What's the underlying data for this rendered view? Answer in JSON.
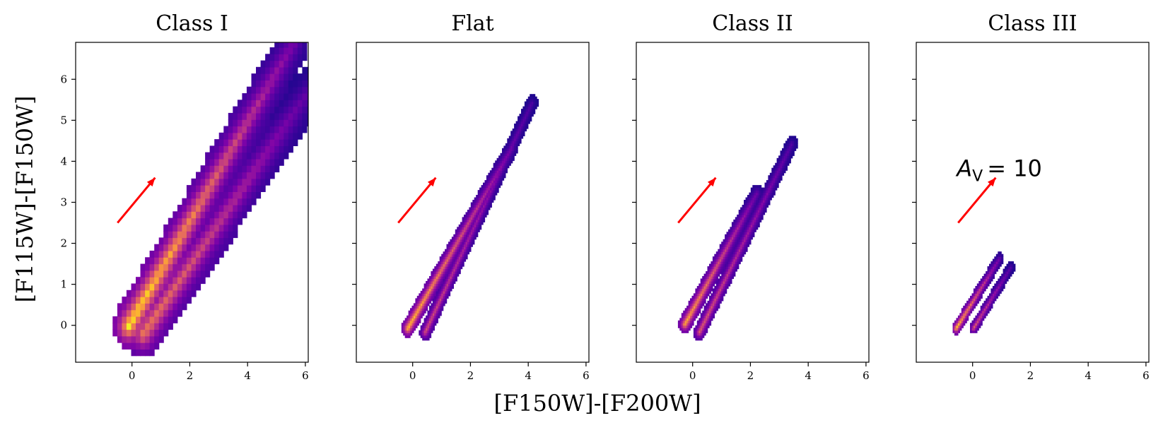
{
  "figure": {
    "xlabel": "[F150W]-[F200W]",
    "ylabel": "[F115W]-[F150W]"
  },
  "colors": {
    "arrow": "#ff0000",
    "colormap": [
      "#0d0887",
      "#4c02a1",
      "#7e03a8",
      "#a92395",
      "#cc4778",
      "#e56b5d",
      "#f89441",
      "#fdc328",
      "#f0f921"
    ]
  },
  "chart_data": [
    {
      "type": "heatmap",
      "title": "Class I",
      "xlim": [
        -1.95,
        6.1
      ],
      "ylim": [
        -0.9,
        6.9
      ],
      "xticks": [
        0,
        2,
        4,
        6
      ],
      "yticks": [
        0,
        1,
        2,
        3,
        4,
        5,
        6
      ],
      "ytick_labels_visible": true,
      "colormap": "plasma",
      "arrow": {
        "from": [
          -0.5,
          2.5
        ],
        "to": [
          0.8,
          3.6
        ],
        "label": ""
      },
      "density_ridges": [
        {
          "from": [
            -0.2,
            -0.1
          ],
          "to": [
            5.5,
            6.8
          ],
          "peak": 1.0,
          "width": 0.55
        },
        {
          "from": [
            0.3,
            -0.3
          ],
          "to": [
            6.0,
            5.6
          ],
          "peak": 0.7,
          "width": 0.6
        }
      ]
    },
    {
      "type": "heatmap",
      "title": "Flat",
      "xlim": [
        -1.95,
        6.1
      ],
      "ylim": [
        -0.9,
        6.9
      ],
      "xticks": [
        0,
        2,
        4,
        6
      ],
      "yticks": [
        0,
        1,
        2,
        3,
        4,
        5,
        6
      ],
      "ytick_labels_visible": false,
      "colormap": "plasma",
      "arrow": {
        "from": [
          -0.5,
          2.5
        ],
        "to": [
          0.8,
          3.6
        ],
        "label": ""
      },
      "density_ridges": [
        {
          "from": [
            -0.2,
            -0.1
          ],
          "to": [
            3.4,
            4.3
          ],
          "peak": 0.9,
          "width": 0.22
        },
        {
          "from": [
            0.4,
            -0.2
          ],
          "to": [
            4.1,
            5.4
          ],
          "peak": 0.55,
          "width": 0.2
        }
      ]
    },
    {
      "type": "heatmap",
      "title": "Class II",
      "xlim": [
        -1.95,
        6.1
      ],
      "ylim": [
        -0.9,
        6.9
      ],
      "xticks": [
        0,
        2,
        4,
        6
      ],
      "yticks": [
        0,
        1,
        2,
        3,
        4,
        5,
        6
      ],
      "ytick_labels_visible": false,
      "colormap": "plasma",
      "arrow": {
        "from": [
          -0.5,
          2.5
        ],
        "to": [
          0.8,
          3.6
        ],
        "label": ""
      },
      "density_ridges": [
        {
          "from": [
            -0.3,
            0.0
          ],
          "to": [
            2.2,
            3.2
          ],
          "peak": 0.85,
          "width": 0.22
        },
        {
          "from": [
            0.2,
            -0.2
          ],
          "to": [
            3.4,
            4.4
          ],
          "peak": 0.6,
          "width": 0.2
        }
      ]
    },
    {
      "type": "heatmap",
      "title": "Class III",
      "xlim": [
        -1.95,
        6.1
      ],
      "ylim": [
        -0.9,
        6.9
      ],
      "xticks": [
        0,
        2,
        4,
        6
      ],
      "yticks": [
        0,
        1,
        2,
        3,
        4,
        5,
        6
      ],
      "ytick_labels_visible": false,
      "colormap": "plasma",
      "arrow": {
        "from": [
          -0.5,
          2.5
        ],
        "to": [
          0.8,
          3.6
        ],
        "label": "A_V = 10"
      },
      "density_ridges": [
        {
          "from": [
            -0.6,
            -0.1
          ],
          "to": [
            0.9,
            1.6
          ],
          "peak": 0.9,
          "width": 0.15
        },
        {
          "from": [
            0.0,
            -0.1
          ],
          "to": [
            1.3,
            1.4
          ],
          "peak": 0.6,
          "width": 0.14
        }
      ]
    }
  ]
}
